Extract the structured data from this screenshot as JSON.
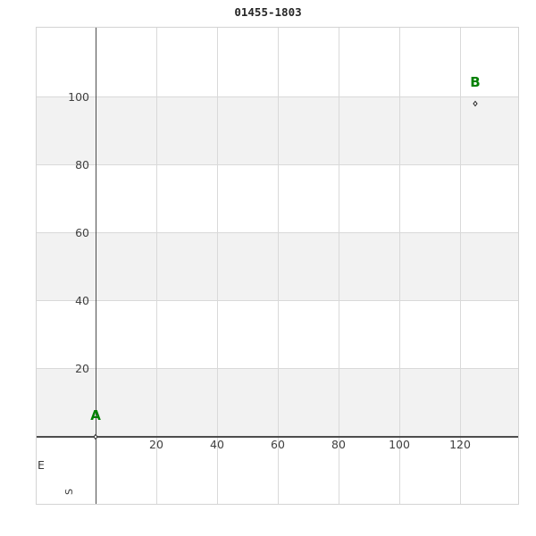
{
  "window": {
    "title": "01455-1803"
  },
  "chart_data": {
    "type": "scatter",
    "title": "01455-1803",
    "xlabel": "E",
    "ylabel": "S",
    "points": [
      {
        "label": "A",
        "x": 0,
        "y": 0
      },
      {
        "label": "B",
        "x": 125,
        "y": 98
      }
    ],
    "x_ticks": [
      20,
      40,
      60,
      80,
      100,
      120
    ],
    "y_ticks": [
      20,
      40,
      60,
      80,
      100
    ],
    "xlim": [
      -20,
      140
    ],
    "ylim": [
      -20,
      121
    ],
    "grid": true,
    "bands_y": [
      [
        0,
        20
      ],
      [
        40,
        60
      ],
      [
        80,
        100
      ]
    ],
    "marker": "open-thin-diamond",
    "legend_position": "none",
    "colors": {
      "background": "#ffffff",
      "band": "#f2f2f2",
      "gridline": "#d9d9d9",
      "plot_border": "#d3d3d3",
      "zero_spine": "#4d4d4d",
      "tick_text": "#404040",
      "title_text": "#262626",
      "marker_edge": "#2b2b2b",
      "point_label": "#008000"
    }
  }
}
